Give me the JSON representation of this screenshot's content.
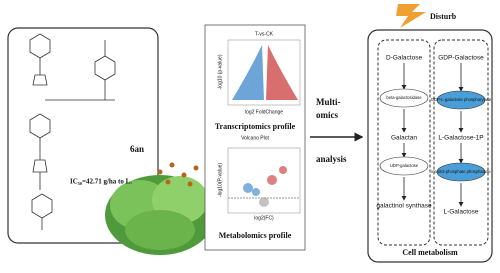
{
  "compound": {
    "name": "6an",
    "activity": "IC₅₀=42.71 g/ha to L."
  },
  "transcriptomics": {
    "plot_title": "T-vs-CK",
    "x_label": "log2 FoldChange",
    "y_label": "-log10 (p-value)",
    "caption": "Transcriptomics profile"
  },
  "metabolomics": {
    "plot_title": "Volcano Plot",
    "y_label": "-log10(P-value)",
    "x_label": "log2(FC)",
    "caption": "Metabolomics profile"
  },
  "link": {
    "top": "Multi-",
    "middle": "omics",
    "bottom": "analysis"
  },
  "cell": {
    "label": "Disturb",
    "title": "Cell metabolism",
    "left_pathway": [
      "D-Galactose",
      "beta-galactosidase",
      "Galactan",
      "UDP-galactose",
      "galactinol synthase"
    ],
    "right_pathway": [
      "GDP-Galactose",
      "GDP-L-galactose phosphorylase",
      "L-Galactose-1P",
      "inositol-phosphate phosphatase",
      "L-Galactose"
    ]
  }
}
